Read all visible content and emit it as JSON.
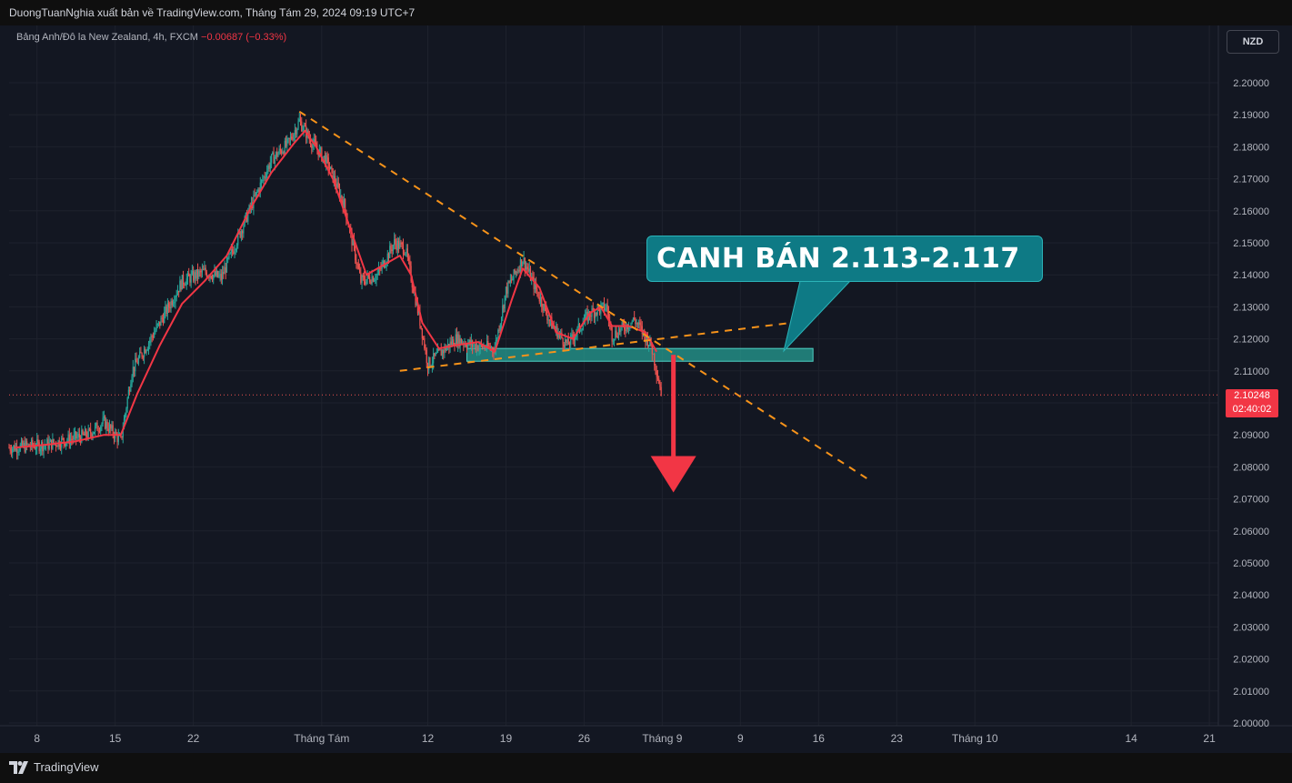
{
  "header": {
    "publish_line": "DuongTuanNghia xuất bản về TradingView.com, Tháng Tám 29, 2024 09:19 UTC+7"
  },
  "legend": {
    "symbol_desc": "Bảng Anh/Đô la New Zealand, 4h, FXCM",
    "change": "−0.00687 (−0.33%)"
  },
  "currency_button": "NZD",
  "last_price": {
    "value": "2.10248",
    "countdown": "02:40:02"
  },
  "annotation": {
    "text": "CANH BÁN 2.113-2.117",
    "zone_low": 2.113,
    "zone_high": 2.117
  },
  "footer": {
    "brand": "TradingView"
  },
  "colors": {
    "background": "#131722",
    "bull": "#26a69a",
    "bear": "#ef5350",
    "ma_line": "#f23645",
    "trendline": "#f7931a",
    "zone": "#26a69a",
    "arrow": "#f23645",
    "callout": "#0e7a85"
  },
  "chart_data": {
    "type": "candlestick",
    "symbol": "GBPNZD",
    "timeframe": "4h",
    "ylim": [
      2.0,
      2.21
    ],
    "y_ticks": [
      "2.00000",
      "2.01000",
      "2.02000",
      "2.03000",
      "2.04000",
      "2.05000",
      "2.06000",
      "2.07000",
      "2.08000",
      "2.09000",
      "2.10000",
      "2.11000",
      "2.12000",
      "2.13000",
      "2.14000",
      "2.15000",
      "2.16000",
      "2.17000",
      "2.18000",
      "2.19000",
      "2.20000"
    ],
    "x_ticks": [
      "8",
      "15",
      "22",
      "Tháng Tám",
      "12",
      "19",
      "26",
      "Tháng 9",
      "9",
      "16",
      "23",
      "Tháng 10",
      "14",
      "21"
    ],
    "price_path": [
      [
        0,
        2.086
      ],
      [
        7,
        2.087
      ],
      [
        14,
        2.09
      ],
      [
        17,
        2.094
      ],
      [
        20,
        2.088
      ],
      [
        22,
        2.11
      ],
      [
        27,
        2.125
      ],
      [
        31,
        2.138
      ],
      [
        35,
        2.141
      ],
      [
        38,
        2.139
      ],
      [
        43,
        2.16
      ],
      [
        47,
        2.176
      ],
      [
        50,
        2.181
      ],
      [
        52,
        2.188
      ],
      [
        54,
        2.182
      ],
      [
        57,
        2.175
      ],
      [
        60,
        2.162
      ],
      [
        63,
        2.138
      ],
      [
        66,
        2.14
      ],
      [
        69,
        2.15
      ],
      [
        71,
        2.148
      ],
      [
        74,
        2.122
      ],
      [
        75,
        2.112
      ],
      [
        80,
        2.12
      ],
      [
        83,
        2.118
      ],
      [
        87,
        2.117
      ],
      [
        89,
        2.135
      ],
      [
        92,
        2.145
      ],
      [
        93,
        2.141
      ],
      [
        97,
        2.125
      ],
      [
        100,
        2.118
      ],
      [
        104,
        2.128
      ],
      [
        107,
        2.13
      ],
      [
        108,
        2.121
      ],
      [
        112,
        2.126
      ],
      [
        115,
        2.118
      ],
      [
        117,
        2.102
      ]
    ],
    "moving_average": [
      [
        1,
        2.086
      ],
      [
        7,
        2.087
      ],
      [
        12,
        2.088
      ],
      [
        17,
        2.09
      ],
      [
        20,
        2.09
      ],
      [
        23,
        2.103
      ],
      [
        27,
        2.118
      ],
      [
        31,
        2.131
      ],
      [
        35,
        2.138
      ],
      [
        39,
        2.146
      ],
      [
        43,
        2.16
      ],
      [
        47,
        2.172
      ],
      [
        51,
        2.181
      ],
      [
        53,
        2.185
      ],
      [
        55,
        2.18
      ],
      [
        58,
        2.17
      ],
      [
        61,
        2.155
      ],
      [
        64,
        2.14
      ],
      [
        67,
        2.143
      ],
      [
        70,
        2.146
      ],
      [
        72,
        2.14
      ],
      [
        74,
        2.125
      ],
      [
        77,
        2.117
      ],
      [
        80,
        2.118
      ],
      [
        84,
        2.119
      ],
      [
        87,
        2.116
      ],
      [
        90,
        2.132
      ],
      [
        92,
        2.142
      ],
      [
        95,
        2.136
      ],
      [
        98,
        2.122
      ],
      [
        101,
        2.12
      ],
      [
        104,
        2.128
      ],
      [
        106,
        2.13
      ],
      [
        108,
        2.124
      ],
      [
        111,
        2.124
      ],
      [
        114,
        2.122
      ],
      [
        116,
        2.116
      ]
    ],
    "x_tick_positions": [
      5,
      19,
      33,
      56,
      75,
      89,
      103,
      117,
      131,
      145,
      159,
      173,
      201,
      215
    ],
    "trendlines": [
      {
        "name": "upper",
        "from": [
          52,
          2.191
        ],
        "to": [
          154,
          2.076
        ]
      },
      {
        "name": "lower",
        "from": [
          70,
          2.11
        ],
        "to": [
          140,
          2.125
        ]
      }
    ],
    "sell_zone": {
      "x": [
        82,
        144
      ],
      "y": [
        2.113,
        2.117
      ]
    },
    "arrow": {
      "x": 119,
      "from_y": 2.115,
      "to_y": 2.072
    },
    "current_price": 2.10248
  }
}
